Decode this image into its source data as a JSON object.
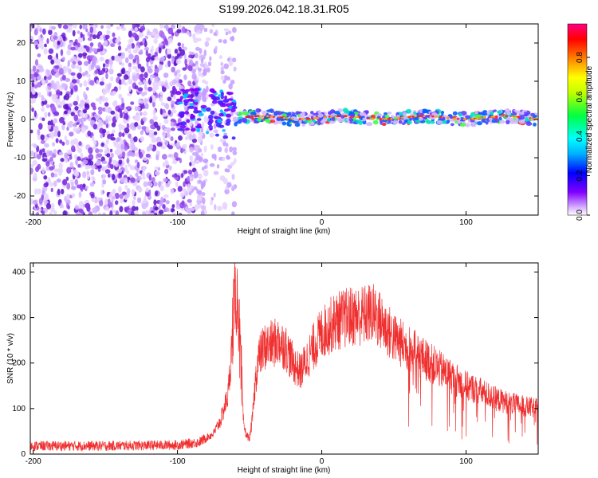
{
  "figure_title": "S199.2026.042.18.31.R05",
  "chart_data": [
    {
      "type": "heatmap",
      "xlabel": "Height of straight line (km)",
      "ylabel": "Frequency (Hz)",
      "xlim": [
        -202,
        150
      ],
      "ylim": [
        -25,
        25
      ],
      "xticks": [
        -200,
        -100,
        0,
        100
      ],
      "xtick_labels": [
        "-200",
        "-100",
        "0",
        "100"
      ],
      "yticks": [
        -20,
        -10,
        0,
        10,
        20
      ],
      "ytick_labels": [
        "-20",
        "-10",
        "0",
        "10",
        "20"
      ],
      "colorbar": {
        "label": "Normalized spectral amplitude",
        "range": [
          0,
          0.97
        ],
        "ticks": [
          0,
          0.2,
          0.4,
          0.6,
          0.8
        ],
        "tick_labels": [
          "0.0",
          "0.2",
          "0.4",
          "0.6",
          "0.8"
        ],
        "colors": [
          "#ffffff",
          "#c080ff",
          "#8000ff",
          "#0000ff",
          "#00ffff",
          "#00ff00",
          "#ffff00",
          "#ff8000",
          "#ff0000",
          "#ff0080"
        ]
      },
      "features": {
        "noise_region_x": [
          -202,
          -80
        ],
        "transition_x": [
          -90,
          -50
        ],
        "signal_frequency_hz": 0.5
      }
    },
    {
      "type": "line",
      "xlabel": "Height of straight line (km)",
      "ylabel": "SNR (10 * v/v)",
      "xlim": [
        -202,
        150
      ],
      "ylim": [
        0,
        420
      ],
      "xticks": [
        -200,
        -100,
        0,
        100
      ],
      "xtick_labels": [
        "-200",
        "-100",
        "0",
        "100"
      ],
      "yticks": [
        0,
        100,
        200,
        300,
        400
      ],
      "ytick_labels": [
        "0",
        "100",
        "200",
        "300",
        "400"
      ],
      "line_color": "#f03030",
      "envelope": {
        "x": [
          -202,
          -150,
          -100,
          -85,
          -75,
          -70,
          -65,
          -62,
          -60,
          -58,
          -56,
          -54,
          -52,
          -50,
          -48,
          -46,
          -44,
          -40,
          -35,
          -30,
          -25,
          -20,
          -15,
          -10,
          -5,
          0,
          5,
          10,
          20,
          30,
          35,
          40,
          50,
          60,
          70,
          80,
          90,
          100,
          110,
          120,
          130,
          140,
          150
        ],
        "y": [
          18,
          18,
          20,
          26,
          45,
          75,
          130,
          250,
          330,
          320,
          150,
          60,
          40,
          35,
          80,
          160,
          210,
          235,
          240,
          248,
          235,
          200,
          180,
          210,
          240,
          265,
          280,
          292,
          302,
          305,
          310,
          295,
          255,
          232,
          212,
          190,
          170,
          150,
          138,
          122,
          112,
          105,
          100
        ]
      }
    }
  ]
}
